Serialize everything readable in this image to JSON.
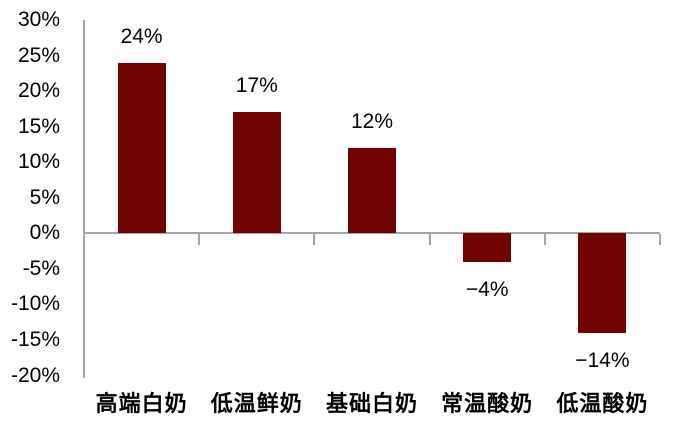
{
  "chart_data": {
    "type": "bar",
    "title": "",
    "xlabel": "",
    "ylabel": "",
    "categories": [
      "高端白奶",
      "低温鲜奶",
      "基础白奶",
      "常温酸奶",
      "低温酸奶"
    ],
    "values": [
      24,
      17,
      12,
      -4,
      -14
    ],
    "value_labels": [
      "24%",
      "17%",
      "12%",
      "−4%",
      "−14%"
    ],
    "y_axis": {
      "min": -20,
      "max": 30,
      "tick_values": [
        30,
        25,
        20,
        15,
        10,
        5,
        0,
        -5,
        -10,
        -15,
        -20
      ],
      "tick_labels": [
        "30%",
        "25%",
        "20%",
        "15%",
        "10%",
        "5%",
        "0%",
        "-5%",
        "-10%",
        "-15%",
        "-20%"
      ]
    },
    "grid": false,
    "legend": "none",
    "colors": {
      "bar": "#730303",
      "axis": "#A6A6A6",
      "text": "#000000",
      "background": "#FFFFFF"
    }
  }
}
